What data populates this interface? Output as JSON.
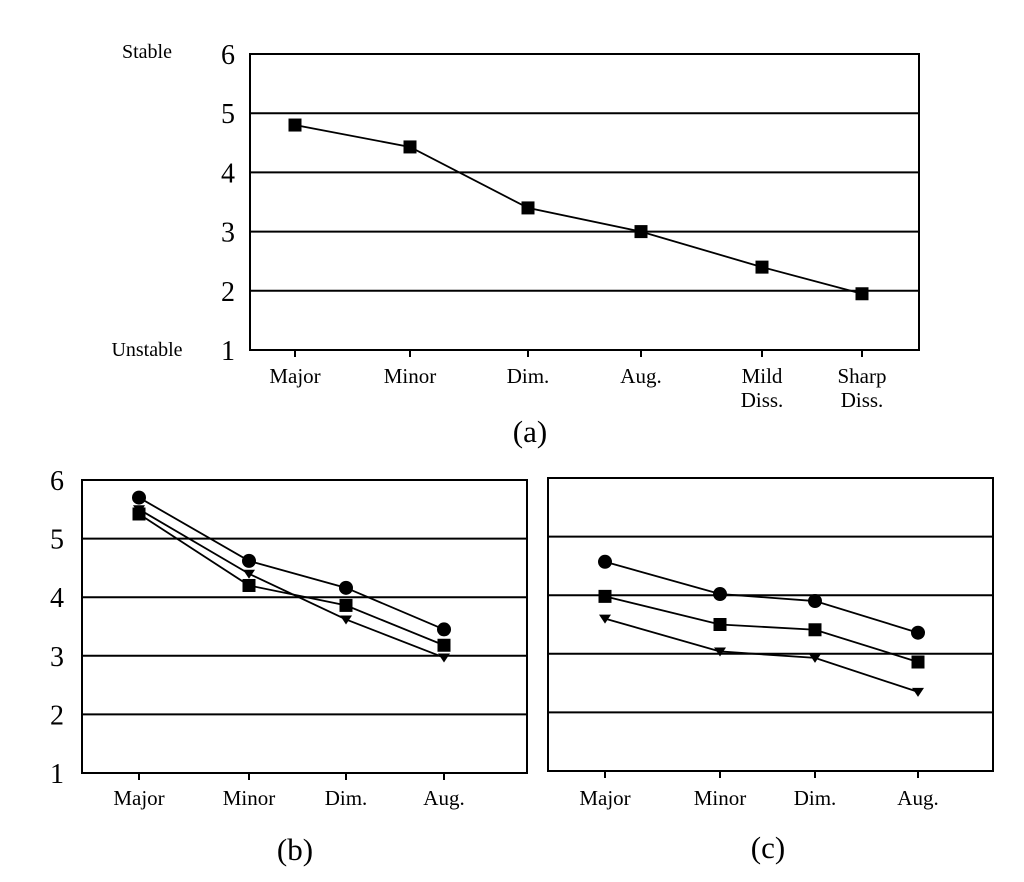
{
  "chart_data": [
    {
      "type": "line",
      "panel_label": "(a)",
      "y_top_label": "Stable",
      "y_bottom_label": "Unstable",
      "categories": [
        [
          "Major"
        ],
        [
          "Minor"
        ],
        [
          "Dim."
        ],
        [
          "Aug."
        ],
        [
          "Mild",
          "Diss."
        ],
        [
          "Sharp",
          "Diss."
        ]
      ],
      "ylim": [
        1,
        6
      ],
      "yticks": [
        "1",
        "2",
        "3",
        "4",
        "5",
        "6"
      ],
      "grid": true,
      "series": [
        {
          "marker": "square",
          "values": [
            4.8,
            4.43,
            3.4,
            3.0,
            2.4,
            1.95
          ]
        }
      ]
    },
    {
      "type": "line",
      "panel_label": "(b)",
      "categories": [
        [
          "Major"
        ],
        [
          "Minor"
        ],
        [
          "Dim."
        ],
        [
          "Aug."
        ]
      ],
      "ylim": [
        1,
        6
      ],
      "yticks": [
        "1",
        "2",
        "3",
        "4",
        "5",
        "6"
      ],
      "grid": true,
      "series": [
        {
          "marker": "circle",
          "values": [
            5.7,
            4.62,
            4.16,
            3.45
          ]
        },
        {
          "marker": "square",
          "values": [
            5.42,
            4.2,
            3.86,
            3.18
          ]
        },
        {
          "marker": "triangle-down",
          "values": [
            5.5,
            4.4,
            3.62,
            2.97
          ]
        }
      ]
    },
    {
      "type": "line",
      "panel_label": "(c)",
      "categories": [
        [
          "Major"
        ],
        [
          "Minor"
        ],
        [
          "Dim."
        ],
        [
          "Aug."
        ]
      ],
      "ylim": [
        1,
        6
      ],
      "grid": true,
      "series": [
        {
          "marker": "circle",
          "values": [
            4.57,
            4.02,
            3.9,
            3.36
          ]
        },
        {
          "marker": "square",
          "values": [
            3.98,
            3.5,
            3.41,
            2.86
          ]
        },
        {
          "marker": "triangle-down",
          "values": [
            3.6,
            3.04,
            2.93,
            2.35
          ]
        }
      ]
    }
  ]
}
